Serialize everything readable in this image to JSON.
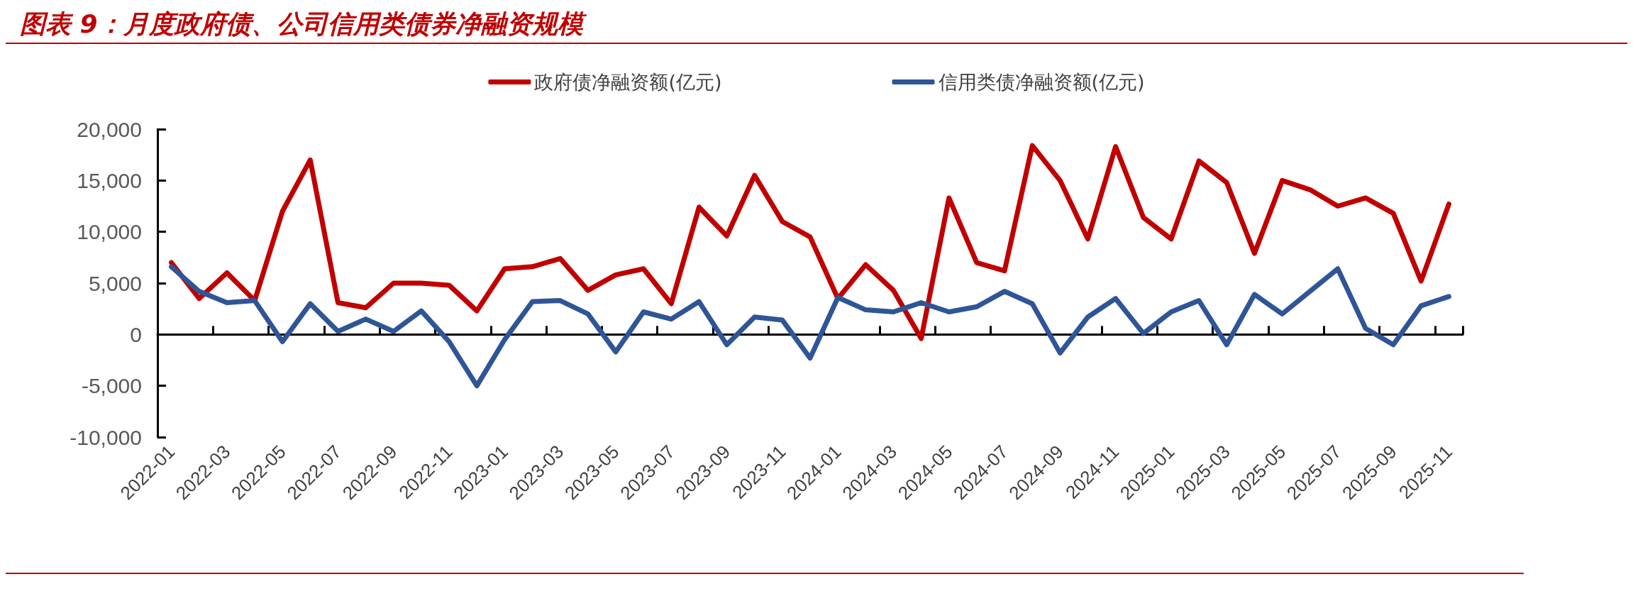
{
  "chart_data": {
    "type": "line",
    "title": "图表 9：月度政府债、公司信用类债券净融资规模",
    "categories": [
      "2022-01",
      null,
      "2022-03",
      null,
      "2022-05",
      null,
      "2022-07",
      null,
      "2022-09",
      null,
      "2022-11",
      null,
      "2023-01",
      null,
      "2023-03",
      null,
      "2023-05",
      null,
      "2023-07",
      null,
      "2023-09",
      null,
      "2023-11",
      null,
      "2024-01",
      null,
      "2024-03",
      null,
      "2024-05",
      null,
      "2024-07",
      null,
      "2024-09",
      null,
      "2024-11",
      null,
      "2025-01",
      null,
      "2025-03",
      null,
      "2025-05",
      null,
      "2025-07",
      null,
      "2025-09",
      null,
      "2025-11"
    ],
    "series": [
      {
        "name": "政府债净融资额(亿元)",
        "color": "#c00000",
        "values": [
          7000,
          3500,
          6000,
          3300,
          12000,
          17000,
          3100,
          2600,
          5000,
          5000,
          4800,
          2300,
          6400,
          6600,
          7400,
          4300,
          5800,
          6400,
          3000,
          12400,
          9600,
          15500,
          11000,
          9500,
          3500,
          6800,
          4300,
          -400,
          13300,
          7000,
          6200,
          18400,
          15000,
          9300,
          18300,
          11400,
          9300,
          16900,
          14800,
          7900,
          15000,
          14100,
          12500,
          13300,
          11800,
          5200,
          12700
        ]
      },
      {
        "name": "信用类债净融资额(亿元)",
        "color": "#2f5597",
        "values": [
          6600,
          4200,
          3100,
          3300,
          -700,
          3000,
          300,
          1500,
          300,
          2300,
          -700,
          -5000,
          -500,
          3200,
          3300,
          2000,
          -1700,
          2200,
          1500,
          3200,
          -1000,
          1700,
          1400,
          -2300,
          3600,
          2400,
          2200,
          3100,
          2200,
          2700,
          4200,
          3000,
          -1800,
          1700,
          3500,
          100,
          2200,
          3300,
          -1000,
          3900,
          2000,
          4200,
          6400,
          600,
          -1000,
          2800,
          3700
        ]
      }
    ],
    "ylim": [
      -10000,
      20000
    ],
    "yticks": [
      {
        "value": -10000,
        "label": "-10,000"
      },
      {
        "value": -5000,
        "label": "-5,000"
      },
      0,
      {
        "value": 5000,
        "label": "5,000"
      },
      {
        "value": 10000,
        "label": "10,000"
      },
      {
        "value": 15000,
        "label": "15,000"
      },
      {
        "value": 20000,
        "label": "20,000"
      }
    ],
    "legend": "top",
    "marker": "none",
    "line_style": "solid"
  }
}
